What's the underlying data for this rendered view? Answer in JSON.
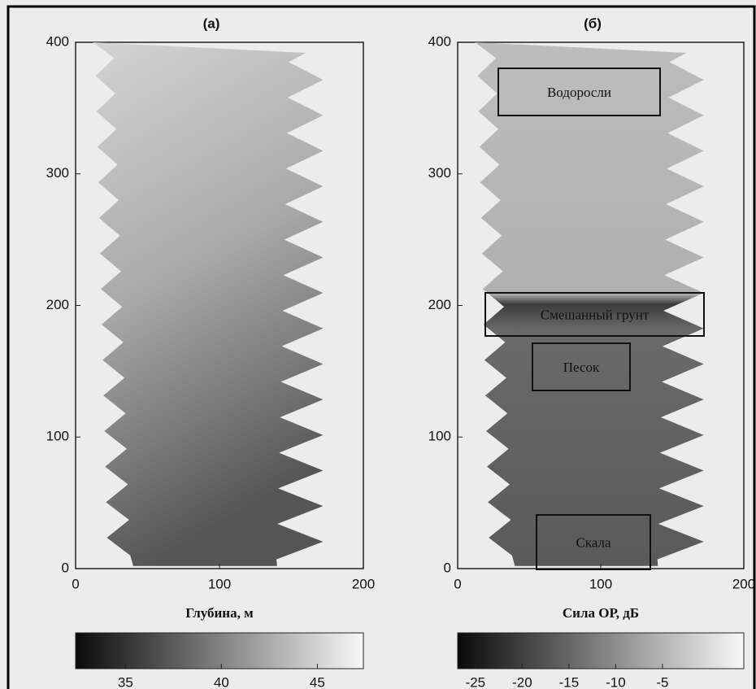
{
  "chart_data": [
    {
      "type": "image",
      "title": "(а)",
      "xlim": [
        0,
        200
      ],
      "ylim": [
        0,
        400
      ],
      "xticks": [
        0,
        100,
        200
      ],
      "yticks": [
        0,
        100,
        200,
        300,
        400
      ],
      "colorbar": {
        "label": "Глубина, м",
        "lim": [
          32.4,
          47.4
        ],
        "ticks": [
          35,
          40,
          45
        ]
      },
      "annotations": []
    },
    {
      "type": "image",
      "title": "(б)",
      "xlim": [
        0,
        200
      ],
      "ylim": [
        0,
        400
      ],
      "xticks": [
        0,
        100,
        200
      ],
      "yticks": [
        0,
        100,
        200,
        300,
        400
      ],
      "colorbar": {
        "label": "Сила ОР, дБ",
        "lim": [
          -26.9,
          3.7
        ],
        "ticks": [
          -25,
          -20,
          -15,
          -10,
          -5
        ]
      },
      "annotations": [
        "Водоросли",
        "Смешанный грунт",
        "Песок",
        "Скала"
      ]
    }
  ]
}
